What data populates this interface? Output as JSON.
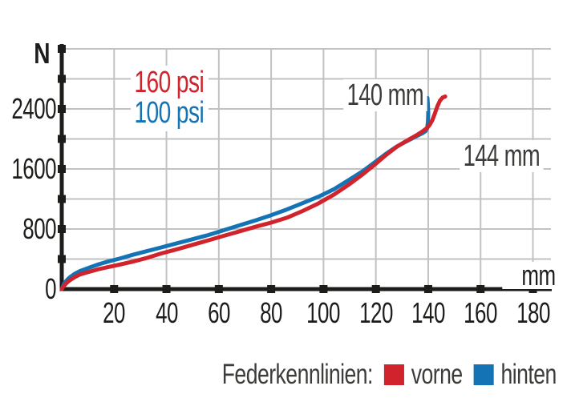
{
  "chart_data": {
    "type": "line",
    "title": "",
    "x_unit": "mm",
    "y_unit": "N",
    "xlim": [
      0,
      187
    ],
    "ylim": [
      0,
      3200
    ],
    "grid": true,
    "x_ticks": [
      20,
      40,
      60,
      80,
      100,
      120,
      140,
      160,
      180
    ],
    "y_grid_step": 400,
    "y_grid_max": 3200,
    "y_tick_labels": [
      {
        "value": 0,
        "label": "0"
      },
      {
        "value": 800,
        "label": "800"
      },
      {
        "value": 1600,
        "label": "1600"
      },
      {
        "value": 2400,
        "label": "2400"
      }
    ],
    "colors": {
      "front_red": "#d0232b",
      "rear_blue": "#1473b5",
      "grid": "#c2c2c2",
      "axis": "#1d1d1b"
    },
    "series": [
      {
        "name": "hinten",
        "pressure": "100 psi",
        "color": "#1473b5",
        "points": [
          [
            0,
            0
          ],
          [
            0.5,
            40
          ],
          [
            1,
            80
          ],
          [
            2,
            120
          ],
          [
            3,
            155
          ],
          [
            5,
            205
          ],
          [
            7,
            240
          ],
          [
            10,
            280
          ],
          [
            14,
            330
          ],
          [
            18,
            370
          ],
          [
            22,
            405
          ],
          [
            27,
            455
          ],
          [
            32,
            500
          ],
          [
            38,
            555
          ],
          [
            44,
            610
          ],
          [
            50,
            665
          ],
          [
            56,
            720
          ],
          [
            62,
            785
          ],
          [
            68,
            850
          ],
          [
            74,
            915
          ],
          [
            80,
            985
          ],
          [
            86,
            1060
          ],
          [
            92,
            1145
          ],
          [
            98,
            1230
          ],
          [
            104,
            1330
          ],
          [
            110,
            1460
          ],
          [
            115,
            1570
          ],
          [
            120,
            1700
          ],
          [
            124,
            1805
          ],
          [
            128,
            1900
          ],
          [
            131,
            1955
          ],
          [
            134,
            2010
          ],
          [
            136,
            2045
          ],
          [
            138,
            2080
          ],
          [
            139,
            2105
          ],
          [
            139.6,
            2145
          ],
          [
            139.9,
            2230
          ],
          [
            140,
            2340
          ],
          [
            139.9,
            2450
          ],
          [
            139.7,
            2545
          ]
        ]
      },
      {
        "name": "vorne",
        "pressure": "160 psi",
        "color": "#d0232b",
        "points": [
          [
            0,
            0
          ],
          [
            0.5,
            25
          ],
          [
            1,
            50
          ],
          [
            2,
            85
          ],
          [
            3,
            115
          ],
          [
            5,
            160
          ],
          [
            7,
            195
          ],
          [
            10,
            225
          ],
          [
            14,
            265
          ],
          [
            18,
            295
          ],
          [
            22,
            325
          ],
          [
            27,
            365
          ],
          [
            32,
            410
          ],
          [
            38,
            475
          ],
          [
            44,
            530
          ],
          [
            50,
            590
          ],
          [
            56,
            650
          ],
          [
            62,
            710
          ],
          [
            68,
            770
          ],
          [
            74,
            830
          ],
          [
            80,
            885
          ],
          [
            86,
            950
          ],
          [
            92,
            1040
          ],
          [
            98,
            1140
          ],
          [
            104,
            1260
          ],
          [
            110,
            1400
          ],
          [
            115,
            1530
          ],
          [
            120,
            1670
          ],
          [
            124,
            1790
          ],
          [
            128,
            1895
          ],
          [
            131,
            1960
          ],
          [
            134,
            2020
          ],
          [
            136,
            2060
          ],
          [
            138,
            2105
          ],
          [
            139.5,
            2145
          ],
          [
            140.5,
            2185
          ],
          [
            141.5,
            2245
          ],
          [
            142.5,
            2335
          ],
          [
            143.5,
            2435
          ],
          [
            144.5,
            2510
          ],
          [
            145.5,
            2552
          ],
          [
            146.5,
            2565
          ]
        ]
      }
    ],
    "annotations": {
      "pressure_labels": [
        {
          "text": "160 psi",
          "color": "#d0232b"
        },
        {
          "text": "100 psi",
          "color": "#1473b5"
        }
      ],
      "end_labels": [
        {
          "text": "140 mm"
        },
        {
          "text": "144 mm"
        }
      ]
    },
    "legend": {
      "title": "Federkennlinien:",
      "items": [
        {
          "label": "vorne",
          "color": "#d0232b"
        },
        {
          "label": "hinten",
          "color": "#1473b5"
        }
      ]
    }
  }
}
